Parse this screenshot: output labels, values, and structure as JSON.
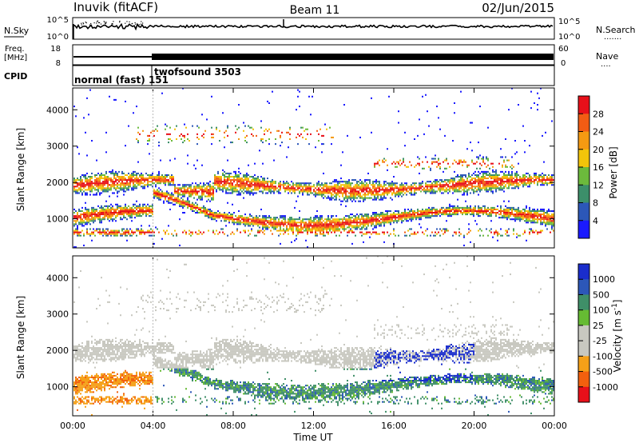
{
  "header": {
    "left": "Inuvik (fitACF)",
    "center": "Beam 11",
    "right": "02/Jun/2015"
  },
  "nsky": {
    "label": "N.Sky",
    "tick_top_left": "10^5",
    "tick_bottom_left": "10^0",
    "tick_top_right": "10^5",
    "tick_bottom_right": "10^0",
    "right_label": "N.Search",
    "right_dots": "......."
  },
  "freq": {
    "label_line1": "Freq.",
    "label_line2": "[MHz]",
    "tick_top": "18",
    "tick_bottom": "8",
    "nave_tick_top": "60",
    "nave_tick_bottom": "0",
    "nave_label": "Nave",
    "nave_dots": "...."
  },
  "cpid": {
    "label": "CPID",
    "modes": [
      {
        "text": "normal (fast) 151",
        "start_hour": 0
      },
      {
        "text": "twofsound 3503",
        "start_hour": 4
      }
    ]
  },
  "colors": {
    "power": [
      "#1a1aff",
      "#2c57b8",
      "#3c8f6a",
      "#6cba3c",
      "#f2c40a",
      "#f59a12",
      "#f25c14",
      "#e8101a"
    ],
    "velocity": [
      "#e8101a",
      "#f2600e",
      "#f5a018",
      "#c8c8c0",
      "#c8c8c0",
      "#66bb33",
      "#3f8f68",
      "#2c57b8",
      "#1a2dcc"
    ]
  },
  "chart_data": [
    {
      "type": "heatmap",
      "name": "power",
      "ylabel": "Slant Range [km]",
      "yticks": [
        1000,
        2000,
        3000,
        4000
      ],
      "ylim": [
        200,
        4600
      ],
      "xlim": [
        0,
        24
      ],
      "colorbar_label": "Power [dB]",
      "colorbar_ticks": [
        "4",
        "8",
        "12",
        "16",
        "20",
        "24",
        "28"
      ],
      "grid": false
    },
    {
      "type": "heatmap",
      "name": "velocity",
      "ylabel": "Slant Range [km]",
      "yticks": [
        1000,
        2000,
        3000,
        4000
      ],
      "ylim": [
        200,
        4600
      ],
      "xlim": [
        0,
        24
      ],
      "colorbar_label": "Velocity [m s^-1]",
      "colorbar_ticks": [
        "1000",
        "500",
        "100",
        "25",
        "-25",
        "-100",
        "-500",
        "-1000"
      ],
      "grid": false
    }
  ],
  "xaxis": {
    "label": "Time UT",
    "ticks": [
      "00:00",
      "04:00",
      "08:00",
      "12:00",
      "16:00",
      "20:00",
      "00:00"
    ]
  }
}
